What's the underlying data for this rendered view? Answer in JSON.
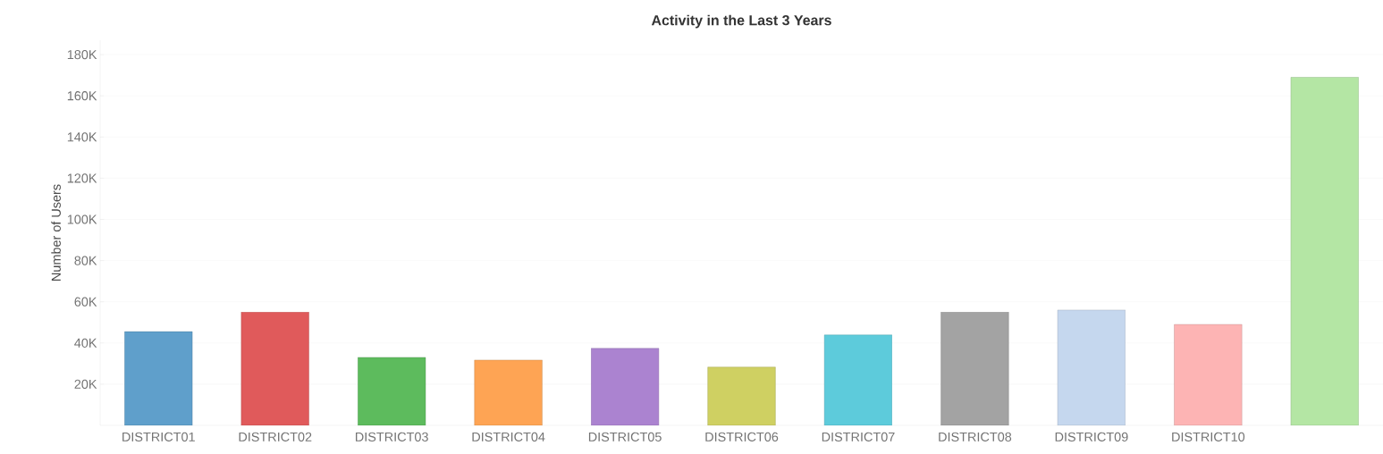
{
  "chart_data": {
    "type": "bar",
    "title": "Activity in the Last 3 Years",
    "ylabel": "Number of Users",
    "categories": [
      "DISTRICT01",
      "DISTRICT02",
      "DISTRICT03",
      "DISTRICT04",
      "DISTRICT05",
      "DISTRICT06",
      "DISTRICT07",
      "DISTRICT08",
      "DISTRICT09",
      "DISTRICT10",
      null
    ],
    "values": [
      45500,
      55000,
      33000,
      31700,
      37400,
      28300,
      43900,
      55000,
      56000,
      49000,
      169000
    ],
    "colors": [
      "#5f9fcb",
      "#e05a5b",
      "#5dbb5d",
      "#fea454",
      "#ab83d0",
      "#cfd062",
      "#5dcbdb",
      "#a3a3a3",
      "#c5d7ee",
      "#fdb4b4",
      "#b4e6a4"
    ],
    "ylim": [
      0,
      187000
    ],
    "yticks": [
      {
        "value": 20000,
        "label": "20K"
      },
      {
        "value": 40000,
        "label": "40K"
      },
      {
        "value": 60000,
        "label": "60K"
      },
      {
        "value": 80000,
        "label": "80K"
      },
      {
        "value": 100000,
        "label": "100K"
      },
      {
        "value": 120000,
        "label": "120K"
      },
      {
        "value": 140000,
        "label": "140K"
      },
      {
        "value": 160000,
        "label": "160K"
      },
      {
        "value": 180000,
        "label": "180K"
      }
    ],
    "grid": "y"
  }
}
